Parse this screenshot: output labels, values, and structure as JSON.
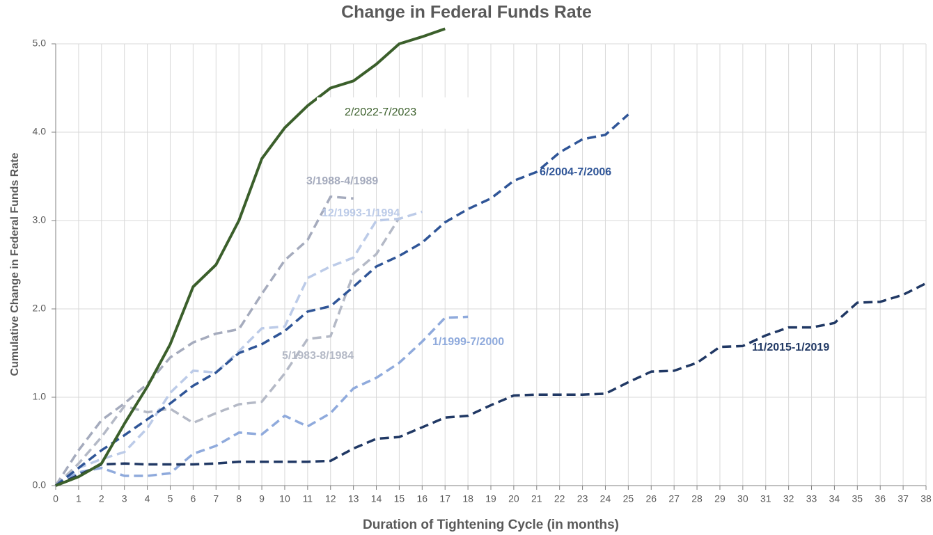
{
  "chart_data": {
    "type": "line",
    "title": "Change in Federal Funds Rate",
    "xlabel": "Duration of Tightening Cycle (in months)",
    "ylabel": "Cumulative Change in Federal Funds Rate",
    "x": [
      0,
      1,
      2,
      3,
      4,
      5,
      6,
      7,
      8,
      9,
      10,
      11,
      12,
      13,
      14,
      15,
      16,
      17,
      18,
      19,
      20,
      21,
      22,
      23,
      24,
      25,
      26,
      27,
      28,
      29,
      30,
      31,
      32,
      33,
      34,
      35,
      36,
      37,
      38
    ],
    "xlim": [
      0,
      38
    ],
    "xticks": [
      0,
      1,
      2,
      3,
      4,
      5,
      6,
      7,
      8,
      9,
      10,
      11,
      12,
      13,
      14,
      15,
      16,
      17,
      18,
      19,
      20,
      21,
      22,
      23,
      24,
      25,
      26,
      27,
      28,
      29,
      30,
      31,
      32,
      33,
      34,
      35,
      36,
      37,
      38
    ],
    "ylim": [
      0,
      5
    ],
    "yticks": [
      {
        "value": 0,
        "label": "0.0"
      },
      {
        "value": 1,
        "label": "1.0"
      },
      {
        "value": 2,
        "label": "2.0"
      },
      {
        "value": 3,
        "label": "3.0"
      },
      {
        "value": 4,
        "label": "4.0"
      },
      {
        "value": 5,
        "label": "5.0"
      }
    ],
    "grid": true,
    "series": [
      {
        "name": "5/1983-8/1984",
        "color": "#b4b9c6",
        "dashed": true,
        "values": [
          0,
          0.25,
          0.55,
          0.9,
          0.83,
          0.87,
          0.71,
          0.82,
          0.92,
          0.95,
          1.27,
          1.66,
          1.69,
          2.4,
          2.62,
          3.03,
          null,
          null,
          null,
          null,
          null,
          null,
          null,
          null,
          null,
          null,
          null,
          null,
          null,
          null,
          null,
          null,
          null,
          null,
          null,
          null,
          null,
          null,
          null
        ]
      },
      {
        "name": "3/1988-4/1989",
        "color": "#a5abbd",
        "dashed": true,
        "values": [
          0,
          0.4,
          0.74,
          0.93,
          1.15,
          1.45,
          1.62,
          1.72,
          1.77,
          2.17,
          2.55,
          2.78,
          3.27,
          3.25,
          null,
          null,
          null,
          null,
          null,
          null,
          null,
          null,
          null,
          null,
          null,
          null,
          null,
          null,
          null,
          null,
          null,
          null,
          null,
          null,
          null,
          null,
          null,
          null,
          null
        ]
      },
      {
        "name": "12/1993-1/1994",
        "color": "#bccbe8",
        "dashed": true,
        "values": [
          0,
          0.2,
          0.3,
          0.38,
          0.65,
          1.05,
          1.3,
          1.28,
          1.52,
          1.78,
          1.8,
          2.35,
          2.48,
          2.58,
          3.0,
          3.02,
          3.1,
          null,
          null,
          null,
          null,
          null,
          null,
          null,
          null,
          null,
          null,
          null,
          null,
          null,
          null,
          null,
          null,
          null,
          null,
          null,
          null,
          null,
          null
        ]
      },
      {
        "name": "1/1999-7/2000",
        "color": "#8faadc",
        "dashed": true,
        "values": [
          0,
          0.15,
          0.2,
          0.11,
          0.11,
          0.14,
          0.36,
          0.45,
          0.6,
          0.58,
          0.79,
          0.67,
          0.82,
          1.1,
          1.22,
          1.39,
          1.63,
          1.9,
          1.91,
          null,
          null,
          null,
          null,
          null,
          null,
          null,
          null,
          null,
          null,
          null,
          null,
          null,
          null,
          null,
          null,
          null,
          null,
          null,
          null
        ]
      },
      {
        "name": "6/2004-7/2006",
        "color": "#2f5597",
        "dashed": true,
        "values": [
          0,
          0.2,
          0.4,
          0.57,
          0.75,
          0.93,
          1.13,
          1.28,
          1.5,
          1.6,
          1.75,
          1.97,
          2.03,
          2.25,
          2.48,
          2.6,
          2.75,
          2.98,
          3.13,
          3.25,
          3.45,
          3.55,
          3.77,
          3.92,
          3.97,
          4.2,
          null,
          null,
          null,
          null,
          null,
          null,
          null,
          null,
          null,
          null,
          null,
          null,
          null
        ]
      },
      {
        "name": "11/2015-1/2019",
        "color": "#203864",
        "dashed": true,
        "values": [
          0,
          0.12,
          0.24,
          0.25,
          0.24,
          0.24,
          0.24,
          0.25,
          0.27,
          0.27,
          0.27,
          0.27,
          0.28,
          0.42,
          0.53,
          0.55,
          0.66,
          0.77,
          0.79,
          0.91,
          1.02,
          1.03,
          1.03,
          1.03,
          1.04,
          1.17,
          1.29,
          1.3,
          1.39,
          1.57,
          1.58,
          1.7,
          1.79,
          1.79,
          1.84,
          2.07,
          2.08,
          2.16,
          2.29
        ]
      },
      {
        "name": "2/2022-7/2023",
        "color": "#3b5f2b",
        "dashed": false,
        "values": [
          0,
          0.1,
          0.25,
          0.7,
          1.12,
          1.6,
          2.25,
          2.5,
          3.0,
          3.7,
          4.05,
          4.3,
          4.5,
          4.58,
          4.77,
          5.0,
          5.08,
          5.17,
          null,
          null,
          null,
          null,
          null,
          null,
          null,
          null,
          null,
          null,
          null,
          null,
          null,
          null,
          null,
          null,
          null,
          null,
          null,
          null,
          null
        ]
      }
    ]
  }
}
